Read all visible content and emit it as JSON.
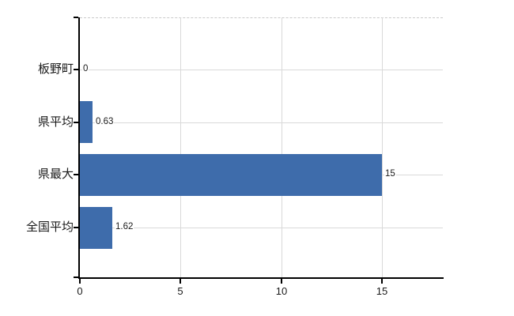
{
  "chart_data": {
    "type": "bar",
    "orientation": "horizontal",
    "categories": [
      "板野町",
      "県平均",
      "県最大",
      "全国平均"
    ],
    "values": [
      0,
      0.63,
      15,
      1.62
    ],
    "value_labels": [
      "0",
      "0.63",
      "15",
      "1.62"
    ],
    "x_ticks": [
      0,
      5,
      10,
      15
    ],
    "x_tick_labels": [
      "0",
      "5",
      "10",
      "15"
    ],
    "xlim": [
      0,
      18
    ],
    "legend_position": "none",
    "grid": {
      "vertical": true,
      "horizontal": true
    },
    "colors": {
      "bar": "#3e6cab",
      "axis": "#000000",
      "gridline": "#d9d9d9",
      "plot_border_top": "#c9c9c9",
      "background": "#ffffff",
      "text": "#1a1a1a"
    }
  }
}
